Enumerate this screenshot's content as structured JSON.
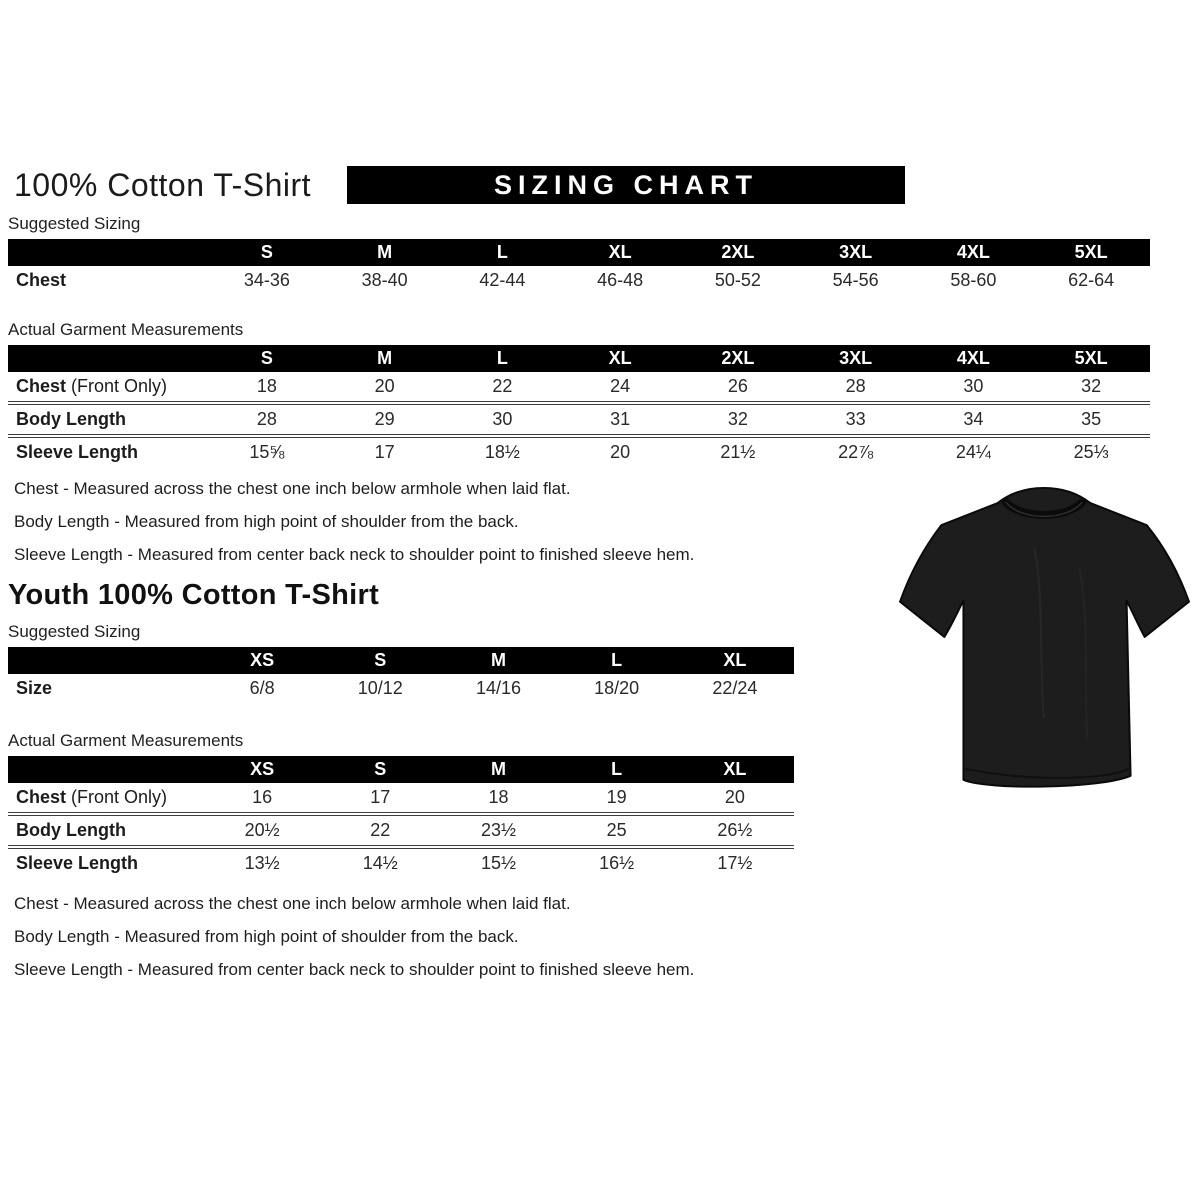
{
  "header": {
    "title": "100% Cotton T-Shirt",
    "banner": "SIZING CHART"
  },
  "adult": {
    "suggested": {
      "label": "Suggested Sizing",
      "columns": [
        "S",
        "M",
        "L",
        "XL",
        "2XL",
        "3XL",
        "4XL",
        "5XL"
      ],
      "rows": [
        {
          "label": "Chest",
          "suffix": "",
          "values": [
            "34-36",
            "38-40",
            "42-44",
            "46-48",
            "50-52",
            "54-56",
            "58-60",
            "62-64"
          ]
        }
      ]
    },
    "actual": {
      "label": "Actual Garment Measurements",
      "columns": [
        "S",
        "M",
        "L",
        "XL",
        "2XL",
        "3XL",
        "4XL",
        "5XL"
      ],
      "rows": [
        {
          "label": "Chest",
          "suffix": " (Front Only)",
          "values": [
            "18",
            "20",
            "22",
            "24",
            "26",
            "28",
            "30",
            "32"
          ]
        },
        {
          "label": "Body Length",
          "suffix": "",
          "values": [
            "28",
            "29",
            "30",
            "31",
            "32",
            "33",
            "34",
            "35"
          ]
        },
        {
          "label": "Sleeve Length",
          "suffix": "",
          "values": [
            "15⅝",
            "17",
            "18½",
            "20",
            "21½",
            "22⅞",
            "24¼",
            "25⅓"
          ]
        }
      ]
    },
    "notes": [
      "Chest - Measured across the chest one inch below armhole when laid flat.",
      "Body Length - Measured from high point of shoulder from the back.",
      "Sleeve Length - Measured from center back neck to shoulder point to finished sleeve hem."
    ]
  },
  "youth": {
    "title": "Youth 100% Cotton T-Shirt",
    "suggested": {
      "label": "Suggested Sizing",
      "columns": [
        "XS",
        "S",
        "M",
        "L",
        "XL"
      ],
      "rows": [
        {
          "label": "Size",
          "suffix": "",
          "values": [
            "6/8",
            "10/12",
            "14/16",
            "18/20",
            "22/24"
          ]
        }
      ]
    },
    "actual": {
      "label": "Actual Garment Measurements",
      "columns": [
        "XS",
        "S",
        "M",
        "L",
        "XL"
      ],
      "rows": [
        {
          "label": "Chest",
          "suffix": " (Front Only)",
          "values": [
            "16",
            "17",
            "18",
            "19",
            "20"
          ]
        },
        {
          "label": "Body Length",
          "suffix": "",
          "values": [
            "20½",
            "22",
            "23½",
            "25",
            "26½"
          ]
        },
        {
          "label": "Sleeve Length",
          "suffix": "",
          "values": [
            "13½",
            "14½",
            "15½",
            "16½",
            "17½"
          ]
        }
      ]
    },
    "notes": [
      "Chest - Measured across the chest one inch below armhole when laid flat.",
      "Body Length - Measured from high point of shoulder from the back.",
      "Sleeve Length - Measured from center back neck to shoulder point to finished sleeve hem."
    ]
  },
  "image": {
    "tshirt_alt": "Black short-sleeve crew neck t-shirt, front view"
  },
  "colors": {
    "banner_bg": "#000000",
    "banner_text": "#ffffff",
    "table_header_bg": "#000000",
    "table_header_text": "#ffffff",
    "body_text": "#1c1c1c",
    "shirt_fill": "#1d1d1d"
  }
}
